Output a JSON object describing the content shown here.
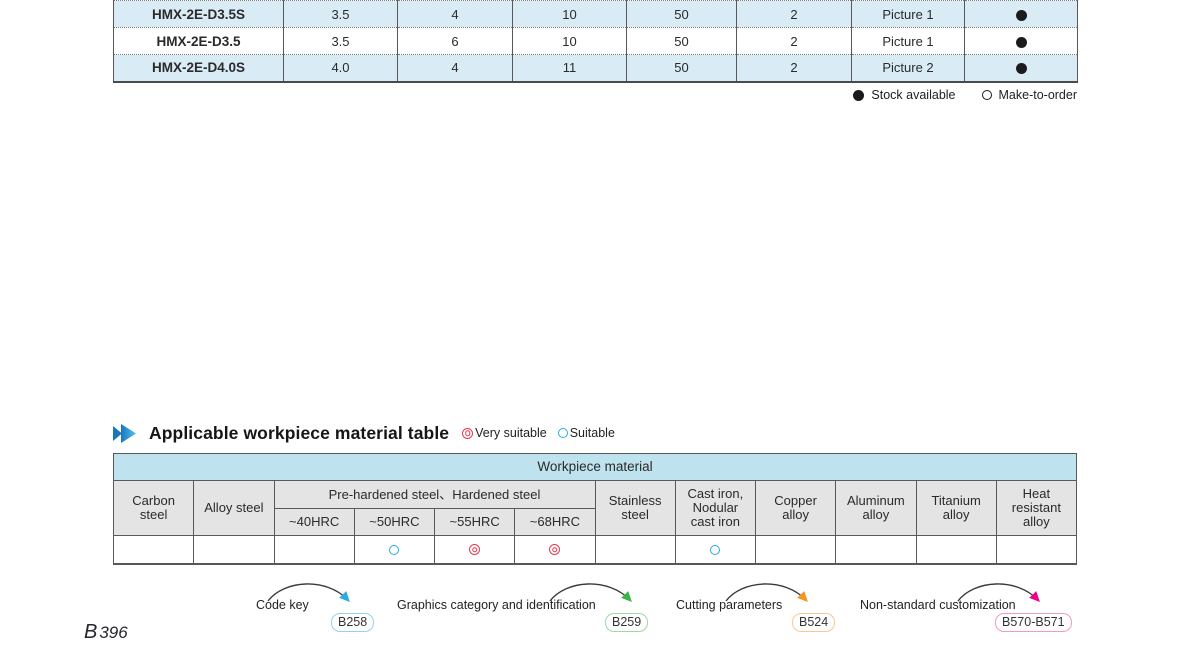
{
  "colors": {
    "accent_blue": "#29abe2",
    "accent_red": "#e73950",
    "row_blue": "#d9ecf5",
    "header_blue": "#bee3ef",
    "header_gray": "#e4e4e4",
    "border_dark": "#58585a"
  },
  "product_table": {
    "rows": [
      {
        "model": "HMX-2E-D3.5S",
        "values": [
          "3.5",
          "4",
          "10",
          "50",
          "2"
        ],
        "picture": "Picture 1",
        "stock": "available"
      },
      {
        "model": "HMX-2E-D3.5",
        "values": [
          "3.5",
          "6",
          "10",
          "50",
          "2"
        ],
        "picture": "Picture 1",
        "stock": "available"
      },
      {
        "model": "HMX-2E-D4.0S",
        "values": [
          "4.0",
          "4",
          "11",
          "50",
          "2"
        ],
        "picture": "Picture 2",
        "stock": "available"
      }
    ],
    "legend": {
      "stock_available": "Stock available",
      "make_to_order": "Make-to-order"
    }
  },
  "section": {
    "title": "Applicable workpiece material table",
    "legend": {
      "very_suitable": "Very suitable",
      "suitable": "Suitable"
    }
  },
  "workpiece_table": {
    "title": "Workpiece material",
    "col_carbon": "Carbon steel",
    "col_alloy": "Alloy steel",
    "group_hardened": "Pre-hardened steel、Hardened steel",
    "hrc_cols": [
      "~40HRC",
      "~50HRC",
      "~55HRC",
      "~68HRC"
    ],
    "col_stainless": "Stainless steel",
    "col_cast_iron": "Cast iron, Nodular cast iron",
    "col_copper": "Copper alloy",
    "col_aluminum": "Aluminum alloy",
    "col_titanium": "Titanium alloy",
    "col_heat": "Heat resistant alloy",
    "ratings": [
      "",
      "",
      "",
      "suitable",
      "very_suitable",
      "very_suitable",
      "",
      "suitable",
      "",
      "",
      "",
      ""
    ]
  },
  "reference_links": [
    {
      "label": "Code key",
      "page": "B258",
      "arrow_color": "#29abe2",
      "badge_border": "#8ed4f2"
    },
    {
      "label": "Graphics category and identification",
      "page": "B259",
      "arrow_color": "#39b54a",
      "badge_border": "#9fd8a7"
    },
    {
      "label": "Cutting parameters",
      "page": "B524",
      "arrow_color": "#f7941d",
      "badge_border": "#f8ca8f"
    },
    {
      "label": "Non-standard customization",
      "page": "B570-B571",
      "arrow_color": "#ec008c",
      "badge_border": "#f49ac1"
    }
  ],
  "page_number": {
    "prefix": "B",
    "number": "396"
  }
}
